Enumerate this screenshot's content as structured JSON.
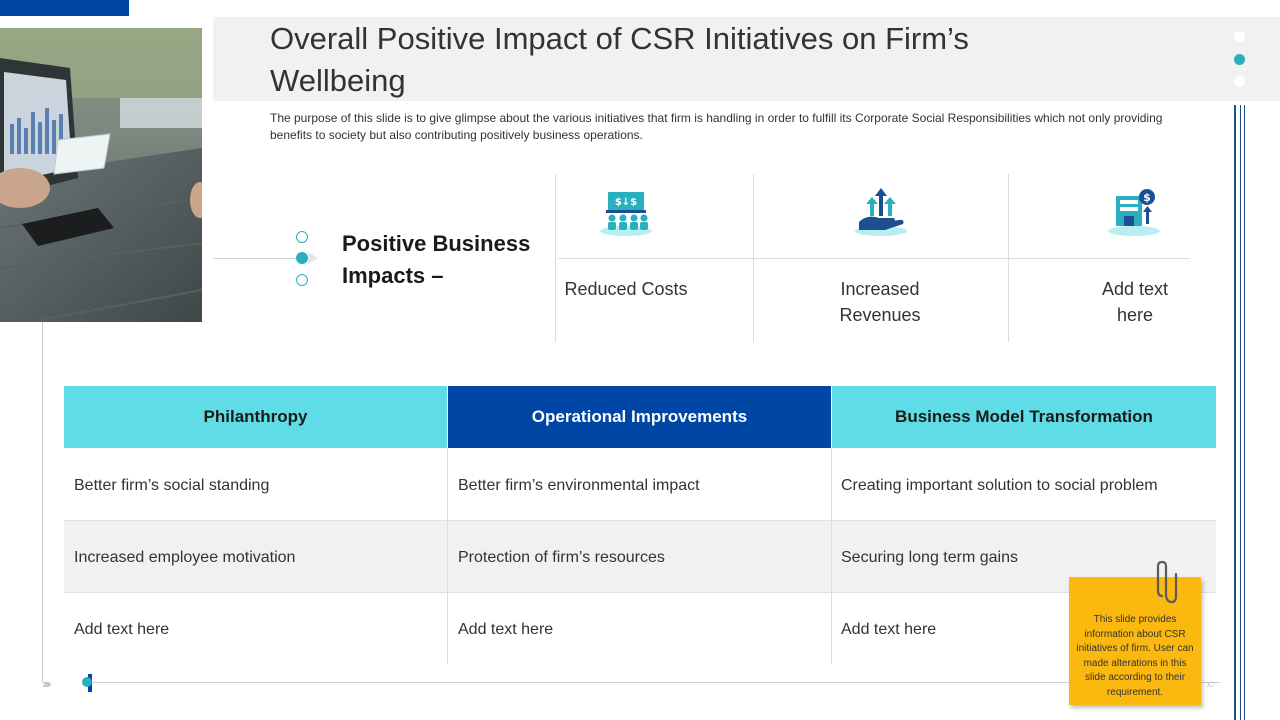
{
  "title": "Overall Positive Impact of CSR Initiatives on Firm’s Wellbeing",
  "subtitle": "The purpose of this slide is to give glimpse about the various initiatives that firm is handling in order to fulfill its Corporate Social Responsibilities which  not only providing benefits to society but also contributing positively business operations.",
  "positive_business_impacts": {
    "heading": "Positive Business Impacts –",
    "items": [
      {
        "label": "Reduced Costs",
        "icon": "meeting-finance-icon"
      },
      {
        "label": "Increased Revenues",
        "icon": "growth-hand-icon"
      },
      {
        "label": "Add text here",
        "icon": "building-dollar-icon"
      }
    ]
  },
  "table": {
    "headers": [
      "Philanthropy",
      "Operational  Improvements",
      "Business  Model  Transformation"
    ],
    "rows": [
      [
        "Better firm’s social standing",
        "Better firm’s environmental impact",
        "Creating important solution to social problem"
      ],
      [
        "Increased employee motivation",
        "Protection of firm’s resources",
        "Securing long term gains"
      ],
      [
        "Add text here",
        "Add text here",
        "Add text here"
      ]
    ]
  },
  "sticky_note": "This slide provides information about  CSR initiatives of firm. User can made alterations in this slide according to their requirement.",
  "colors": {
    "accent_dark_blue": "#0047a5",
    "accent_cyan": "#5fdce6",
    "teal": "#29b0bf",
    "sticky_yellow": "#fbb80f"
  }
}
